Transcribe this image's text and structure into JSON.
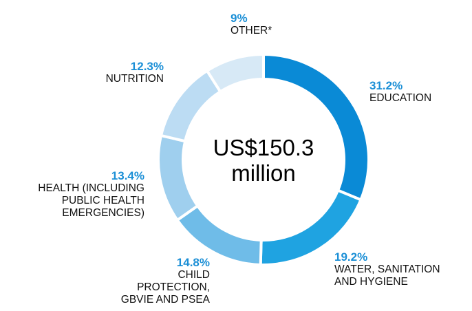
{
  "chart_data": {
    "type": "donut",
    "center_label": {
      "line1": "US$150.3",
      "line2": "million"
    },
    "slices": [
      {
        "label_lines": [
          "EDUCATION"
        ],
        "value": 31.2,
        "value_label": "31.2%",
        "color": "#0a8ad6"
      },
      {
        "label_lines": [
          "WATER, SANITATION",
          "AND HYGIENE"
        ],
        "value": 19.2,
        "value_label": "19.2%",
        "color": "#1fa3e1"
      },
      {
        "label_lines": [
          "CHILD",
          "PROTECTION,",
          "GBVIE AND PSEA"
        ],
        "value": 14.8,
        "value_label": "14.8%",
        "color": "#6fbce8"
      },
      {
        "label_lines": [
          "HEALTH (INCLUDING",
          "PUBLIC HEALTH",
          "EMERGENCIES)"
        ],
        "value": 13.4,
        "value_label": "13.4%",
        "color": "#9fcfee"
      },
      {
        "label_lines": [
          "NUTRITION"
        ],
        "value": 12.3,
        "value_label": "12.3%",
        "color": "#bcdcf3"
      },
      {
        "label_lines": [
          "OTHER*"
        ],
        "value": 9,
        "value_label": "9%",
        "color": "#d7e9f6"
      }
    ],
    "start_angle_deg": 0,
    "direction": "clockwise"
  }
}
